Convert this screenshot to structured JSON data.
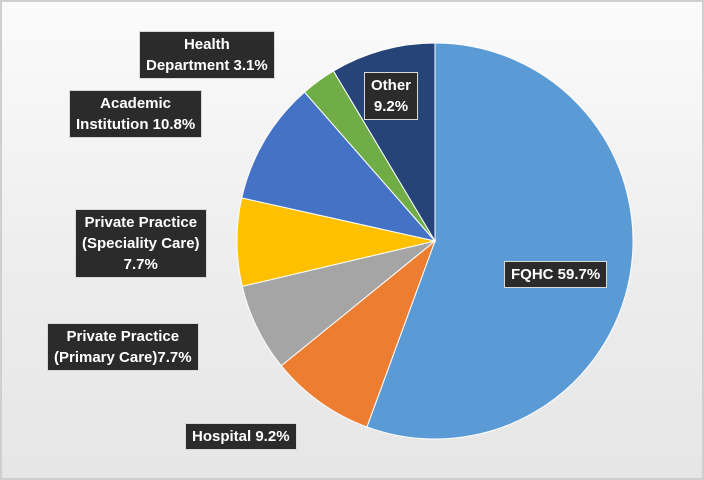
{
  "chart_data": {
    "type": "pie",
    "title": "",
    "start_angle_deg": 0,
    "direction": "clockwise",
    "slices": [
      {
        "name": "FQHC",
        "value": 59.7,
        "color": "#5b9bd5",
        "label_lines": [
          "FQHC 59.7%"
        ]
      },
      {
        "name": "Hospital",
        "value": 9.2,
        "color": "#ed7d31",
        "label_lines": [
          "Hospital  9.2%"
        ]
      },
      {
        "name": "Private Practice (Primary Care)",
        "value": 7.7,
        "color": "#a5a5a5",
        "label_lines": [
          "Private Practice",
          "(Primary Care)7.7%"
        ]
      },
      {
        "name": "Private Practice (Speciality Care)",
        "value": 7.7,
        "color": "#ffc000",
        "label_lines": [
          "Private Practice",
          "(Speciality Care)",
          "7.7%"
        ]
      },
      {
        "name": "Academic Institution",
        "value": 10.8,
        "color": "#4472c4",
        "label_lines": [
          "Academic",
          "Institution 10.8%"
        ]
      },
      {
        "name": "Health Department",
        "value": 3.1,
        "color": "#70ad47",
        "label_lines": [
          "Health",
          "Department 3.1%"
        ]
      },
      {
        "name": "Other",
        "value": 9.2,
        "color": "#264478",
        "label_lines": [
          "Other",
          "9.2%"
        ]
      }
    ],
    "label_style": "dark callout boxes with white bold text"
  }
}
